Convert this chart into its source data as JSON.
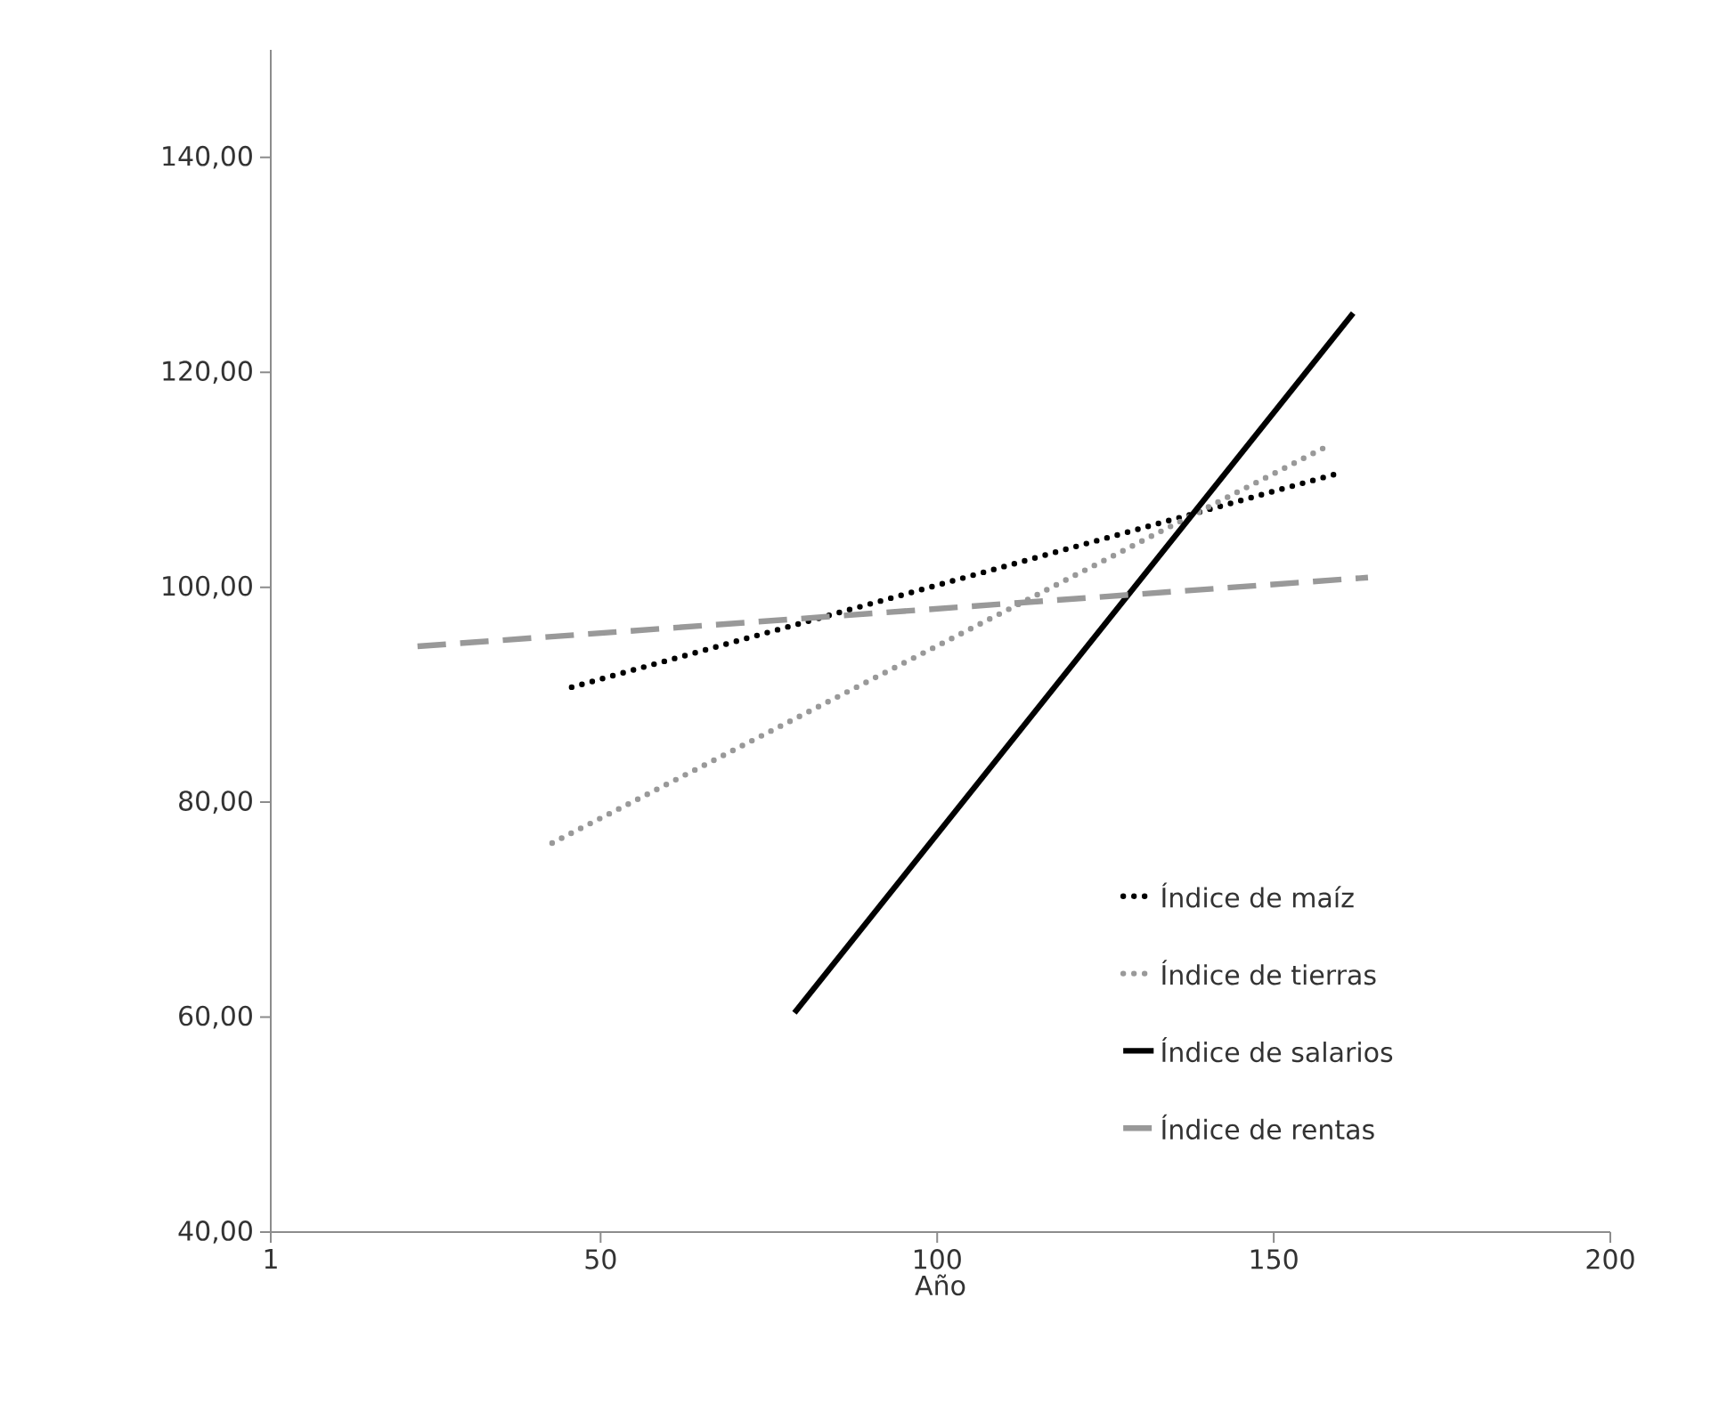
{
  "chart_data": {
    "type": "line",
    "xlabel": "Año",
    "xlim": [
      1,
      200
    ],
    "xticks": [
      1,
      50,
      100,
      150,
      200
    ],
    "ylim": [
      40,
      150
    ],
    "yticks": [
      {
        "value": 40,
        "label": "40,00"
      },
      {
        "value": 60,
        "label": "60,00"
      },
      {
        "value": 80,
        "label": "80,00"
      },
      {
        "value": 100,
        "label": "100,00"
      },
      {
        "value": 120,
        "label": "120,00"
      },
      {
        "value": 140,
        "label": "140,00"
      }
    ],
    "grid": false,
    "legend": "bottom right",
    "marker": "none",
    "series": [
      {
        "name": "Índice de maíz",
        "color": "#000000",
        "line_style": "dotted",
        "x": [
          45.7,
          159.6
        ],
        "values": [
          90.7,
          110.6
        ]
      },
      {
        "name": "Índice de tierras",
        "color": "#999999",
        "line_style": "dotted",
        "x": [
          42.8,
          158.5
        ],
        "values": [
          76.2,
          113.3
        ]
      },
      {
        "name": "Índice de salarios",
        "color": "#000000",
        "line_style": "solid",
        "x": [
          78.8,
          161.8
        ],
        "values": [
          60.4,
          125.5
        ]
      },
      {
        "name": "Índice de rentas",
        "color": "#999999",
        "line_style": "dashed",
        "x": [
          22.8,
          164
        ],
        "values": [
          94.5,
          100.9
        ]
      }
    ]
  }
}
